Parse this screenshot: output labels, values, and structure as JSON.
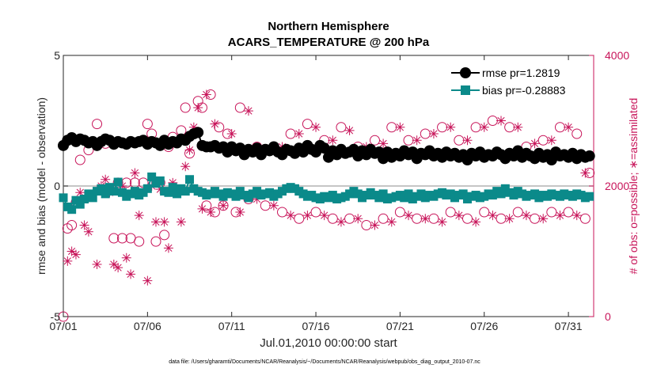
{
  "chart_data": {
    "type": "line",
    "title": "Northern Hemisphere",
    "subtitle": "ACARS_TEMPERATURE @ 200 hPa",
    "xlabel": "Jul.01,2010 00:00:00 start",
    "ylabel_left": "rmse and bias (model - observation)",
    "ylabel_right": "# of obs: o=possible; ∗=assimilated",
    "footnote": "data file: /Users/gharamti/Documents/NCAR/Reanalysis/~/Documents/NCAR/Reanalysis/webpub/obs_diag_output_2010-07.nc",
    "xlim": [
      0,
      31.5
    ],
    "ylim_left": [
      -5,
      5
    ],
    "ylim_right": [
      0,
      4000
    ],
    "x_ticks": [
      0,
      5,
      10,
      15,
      20,
      25,
      30
    ],
    "x_tick_labels": [
      "07/01",
      "07/06",
      "07/11",
      "07/16",
      "07/21",
      "07/26",
      "07/31"
    ],
    "y_left_ticks": [
      -5,
      0,
      5
    ],
    "y_left_tick_labels": [
      "-5",
      "0",
      "5"
    ],
    "y_right_ticks": [
      0,
      2000,
      4000
    ],
    "y_right_tick_labels": [
      "0",
      "2000",
      "4000"
    ],
    "grid": false,
    "legend_position": "top-right",
    "colors": {
      "rmse": "#000000",
      "bias": "#0b8a8a",
      "obs": "#c8155a",
      "zero_line": "#b3b3b3",
      "axis": "#262626",
      "right_axis": "#c8155a"
    },
    "series": [
      {
        "name": "rmse",
        "label": "rmse pr=1.2819",
        "axis": "left",
        "marker": "circle",
        "x": [
          0,
          0.25,
          0.5,
          0.75,
          1,
          1.25,
          1.5,
          1.75,
          2,
          2.25,
          2.5,
          2.75,
          3,
          3.25,
          3.5,
          3.75,
          4,
          4.25,
          4.5,
          4.75,
          5,
          5.25,
          5.5,
          5.75,
          6,
          6.25,
          6.5,
          6.75,
          7,
          7.25,
          7.5,
          7.75,
          8,
          8.25,
          8.5,
          8.75,
          9,
          9.25,
          9.5,
          9.75,
          10,
          10.25,
          10.5,
          10.75,
          11,
          11.25,
          11.5,
          11.75,
          12,
          12.25,
          12.5,
          12.75,
          13,
          13.25,
          13.5,
          13.75,
          14,
          14.25,
          14.5,
          14.75,
          15,
          15.25,
          15.5,
          15.75,
          16,
          16.25,
          16.5,
          16.75,
          17,
          17.25,
          17.5,
          17.75,
          18,
          18.25,
          18.5,
          18.75,
          19,
          19.25,
          19.5,
          19.75,
          20,
          20.25,
          20.5,
          20.75,
          21,
          21.25,
          21.5,
          21.75,
          22,
          22.25,
          22.5,
          22.75,
          23,
          23.25,
          23.5,
          23.75,
          24,
          24.25,
          24.5,
          24.75,
          25,
          25.25,
          25.5,
          25.75,
          26,
          26.25,
          26.5,
          26.75,
          27,
          27.25,
          27.5,
          27.75,
          28,
          28.25,
          28.5,
          28.75,
          29,
          29.25,
          29.5,
          29.75,
          30,
          30.25,
          30.5,
          30.75,
          31,
          31.25
        ],
        "values": [
          1.55,
          1.75,
          1.85,
          1.7,
          1.8,
          1.75,
          1.65,
          1.7,
          1.55,
          1.7,
          1.8,
          1.75,
          1.6,
          1.7,
          1.65,
          1.6,
          1.7,
          1.65,
          1.7,
          1.75,
          1.6,
          1.7,
          1.65,
          1.55,
          1.75,
          1.6,
          1.7,
          1.65,
          1.8,
          1.75,
          1.9,
          2.0,
          2.05,
          1.55,
          1.5,
          1.5,
          1.55,
          1.45,
          1.5,
          1.3,
          1.5,
          1.35,
          1.45,
          1.2,
          1.4,
          1.3,
          1.45,
          1.2,
          1.4,
          1.35,
          1.5,
          1.3,
          1.2,
          1.4,
          1.35,
          1.25,
          1.45,
          1.3,
          1.55,
          1.4,
          1.3,
          1.55,
          1.45,
          1.1,
          1.35,
          1.2,
          1.4,
          1.25,
          1.3,
          1.4,
          1.15,
          1.35,
          1.2,
          1.4,
          1.25,
          1.3,
          1.05,
          1.3,
          1.1,
          1.25,
          1.15,
          1.35,
          1.2,
          1.3,
          1.05,
          1.25,
          1.2,
          1.35,
          1.15,
          1.25,
          1.1,
          1.3,
          1.15,
          1.25,
          1.1,
          1.2,
          1.0,
          1.25,
          1.15,
          1.3,
          1.1,
          1.2,
          1.15,
          1.3,
          1.2,
          1.05,
          1.25,
          1.15,
          1.35,
          1.1,
          1.25,
          1.15,
          1.05,
          1.25,
          1.1,
          1.2,
          1.0,
          1.3,
          1.15,
          1.2,
          1.1,
          1.25,
          1.05,
          1.2,
          1.1,
          1.15
        ]
      },
      {
        "name": "bias",
        "label": "bias pr=-0.28883",
        "axis": "left",
        "marker": "square",
        "x": [
          0,
          0.25,
          0.5,
          0.75,
          1,
          1.25,
          1.5,
          1.75,
          2,
          2.25,
          2.5,
          2.75,
          3,
          3.25,
          3.5,
          3.75,
          4,
          4.25,
          4.5,
          4.75,
          5,
          5.25,
          5.5,
          5.75,
          6,
          6.25,
          6.5,
          6.75,
          7,
          7.25,
          7.5,
          7.75,
          8,
          8.25,
          8.5,
          8.75,
          9,
          9.25,
          9.5,
          9.75,
          10,
          10.25,
          10.5,
          10.75,
          11,
          11.25,
          11.5,
          11.75,
          12,
          12.25,
          12.5,
          12.75,
          13,
          13.25,
          13.5,
          13.75,
          14,
          14.25,
          14.5,
          14.75,
          15,
          15.25,
          15.5,
          15.75,
          16,
          16.25,
          16.5,
          16.75,
          17,
          17.25,
          17.5,
          17.75,
          18,
          18.25,
          18.5,
          18.75,
          19,
          19.25,
          19.5,
          19.75,
          20,
          20.25,
          20.5,
          20.75,
          21,
          21.25,
          21.5,
          21.75,
          22,
          22.25,
          22.5,
          22.75,
          23,
          23.25,
          23.5,
          23.75,
          24,
          24.25,
          24.5,
          24.75,
          25,
          25.25,
          25.5,
          25.75,
          26,
          26.25,
          26.5,
          26.75,
          27,
          27.25,
          27.5,
          27.75,
          28,
          28.25,
          28.5,
          28.75,
          29,
          29.25,
          29.5,
          29.75,
          30,
          30.25,
          30.5,
          30.75,
          31,
          31.25
        ],
        "values": [
          -0.45,
          -0.8,
          -0.9,
          -0.55,
          -0.7,
          -0.5,
          -0.3,
          -0.45,
          -0.2,
          -0.1,
          -0.3,
          -0.05,
          -0.2,
          0.15,
          -0.25,
          -0.4,
          -0.3,
          -0.2,
          -0.35,
          -0.25,
          -0.1,
          0.35,
          0.1,
          0.2,
          -0.2,
          -0.25,
          -0.05,
          -0.3,
          -0.1,
          -0.2,
          0.25,
          -0.1,
          -0.2,
          -0.25,
          -0.35,
          -0.3,
          -0.2,
          -0.3,
          -0.4,
          -0.25,
          -0.3,
          -0.4,
          -0.2,
          -0.35,
          -0.45,
          -0.3,
          -0.2,
          -0.35,
          -0.3,
          -0.25,
          -0.4,
          -0.3,
          -0.2,
          -0.1,
          -0.05,
          -0.1,
          -0.2,
          -0.3,
          -0.4,
          -0.35,
          -0.45,
          -0.5,
          -0.4,
          -0.45,
          -0.35,
          -0.5,
          -0.45,
          -0.4,
          -0.3,
          -0.2,
          -0.3,
          -0.45,
          -0.35,
          -0.25,
          -0.35,
          -0.45,
          -0.3,
          -0.5,
          -0.45,
          -0.4,
          -0.35,
          -0.45,
          -0.3,
          -0.5,
          -0.4,
          -0.3,
          -0.45,
          -0.35,
          -0.4,
          -0.3,
          -0.25,
          -0.35,
          -0.3,
          -0.45,
          -0.35,
          -0.3,
          -0.5,
          -0.4,
          -0.35,
          -0.45,
          -0.4,
          -0.3,
          -0.35,
          -0.2,
          -0.3,
          -0.1,
          -0.25,
          -0.35,
          -0.2,
          -0.3,
          -0.4,
          -0.35,
          -0.3,
          -0.45,
          -0.35,
          -0.4,
          -0.3,
          -0.35,
          -0.4,
          -0.3,
          -0.35,
          -0.4,
          -0.3,
          -0.35,
          -0.45,
          -0.4
        ]
      },
      {
        "name": "possible",
        "label": "possible",
        "axis": "right",
        "marker": "open-circle",
        "x": [
          0,
          0.25,
          0.5,
          0.75,
          1,
          1.5,
          2,
          2.5,
          3,
          3.25,
          3.5,
          3.75,
          4,
          4.25,
          4.5,
          4.75,
          5,
          5.25,
          5.5,
          5.75,
          6,
          6.25,
          6.5,
          7,
          7.25,
          7.5,
          7.75,
          8,
          8.25,
          8.5,
          8.75,
          9,
          9.25,
          9.5,
          9.75,
          10.25,
          10.5,
          11,
          11.5,
          12,
          12.5,
          13,
          13.5,
          14,
          14.5,
          15,
          15.5,
          16,
          16.5,
          17,
          17.5,
          18,
          18.5,
          19,
          19.5,
          20,
          20.5,
          21,
          21.5,
          22,
          22.5,
          23,
          23.5,
          24,
          24.5,
          25,
          25.5,
          26,
          26.5,
          27,
          27.5,
          28,
          28.5,
          29,
          29.5,
          30,
          30.5,
          31,
          31.25
        ],
        "values": [
          0,
          1350,
          1400,
          1750,
          2400,
          2550,
          2950,
          2650,
          1200,
          2050,
          1200,
          2050,
          1200,
          2050,
          1150,
          2050,
          2950,
          2800,
          1150,
          2050,
          1250,
          2600,
          2750,
          2850,
          3200,
          2500,
          2800,
          3300,
          3200,
          1700,
          3400,
          1600,
          2900,
          1700,
          2800,
          1600,
          3200,
          1800,
          2600,
          1700,
          2600,
          1600,
          2800,
          1500,
          2950,
          1600,
          2700,
          1500,
          2900,
          1500,
          2600,
          1400,
          2700,
          1500,
          2900,
          1600,
          2700,
          1500,
          2800,
          1500,
          2900,
          1600,
          2700,
          1500,
          2900,
          1600,
          3000,
          1500,
          2900,
          1600,
          2600,
          1500,
          2700,
          1600,
          2900,
          1600,
          2800,
          1500,
          2200
        ]
      },
      {
        "name": "assimilated",
        "label": "assimilated",
        "axis": "right",
        "marker": "star",
        "x": [
          0.25,
          0.5,
          0.75,
          1,
          1.25,
          1.5,
          2,
          2.25,
          2.5,
          2.75,
          3,
          3.25,
          3.5,
          3.75,
          4,
          4.25,
          4.5,
          5,
          5.25,
          5.5,
          5.75,
          6,
          6.25,
          6.5,
          7,
          7.25,
          7.5,
          7.75,
          8,
          8.25,
          8.5,
          8.75,
          9,
          9.5,
          10,
          10.5,
          11,
          11.5,
          12,
          12.5,
          13,
          13.5,
          14,
          14.5,
          15,
          15.5,
          16,
          16.5,
          17,
          17.5,
          18,
          18.5,
          19,
          19.5,
          20,
          20.5,
          21,
          21.5,
          22,
          22.5,
          23,
          23.5,
          24,
          24.5,
          25,
          25.5,
          26,
          26.5,
          27,
          27.5,
          28,
          28.5,
          29,
          29.5,
          30,
          30.5,
          31
        ],
        "values": [
          850,
          1000,
          950,
          1900,
          1400,
          1300,
          800,
          2000,
          2100,
          1900,
          800,
          750,
          2000,
          900,
          650,
          2200,
          1550,
          550,
          2000,
          1450,
          1950,
          1450,
          1050,
          2050,
          1450,
          2300,
          2550,
          2900,
          3200,
          1650,
          3400,
          1600,
          2950,
          1700,
          2800,
          1600,
          3150,
          1800,
          2550,
          1700,
          2600,
          1550,
          2800,
          1550,
          2900,
          1550,
          2700,
          1450,
          2850,
          1500,
          2600,
          1400,
          2650,
          1450,
          2900,
          1550,
          2700,
          1500,
          2800,
          1450,
          2900,
          1550,
          2700,
          1450,
          2900,
          1550,
          3000,
          1500,
          2900,
          1550,
          2650,
          1500,
          2700,
          1550,
          2900,
          1550,
          2200
        ]
      }
    ]
  }
}
